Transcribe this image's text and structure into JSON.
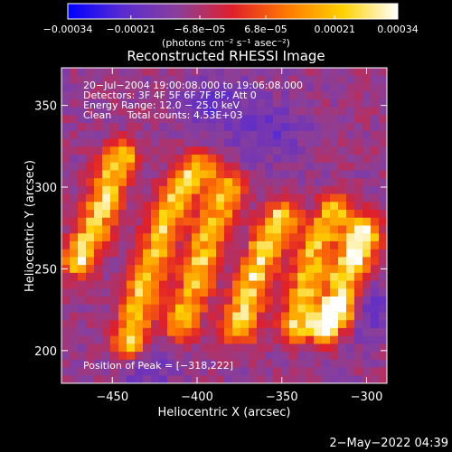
{
  "chart_data": {
    "type": "heatmap",
    "title": "Reconstructed RHESSI Image",
    "xlabel": "Heliocentric X (arcsec)",
    "ylabel": "Heliocentric Y (arcsec)",
    "xlim": [
      -480,
      -288
    ],
    "ylim": [
      180,
      373
    ],
    "x_ticks": [
      -450,
      -400,
      -350,
      -300
    ],
    "x_tick_labels": [
      "−450",
      "−400",
      "−350",
      "−300"
    ],
    "y_ticks": [
      200,
      250,
      300,
      350
    ],
    "y_tick_labels": [
      "200",
      "250",
      "300",
      "350"
    ],
    "colorbar": {
      "min": -0.00034,
      "max": 0.00034,
      "ticks": [
        -0.00034,
        -0.00021,
        -6.8e-05,
        6.8e-05,
        0.00021,
        0.00034
      ],
      "tick_labels": [
        "−0.00034",
        "−0.00021",
        "−6.8e−05",
        "6.8e−05",
        "0.00021",
        "0.00034"
      ],
      "unit": "(photons cm⁻² s⁻¹ asec⁻²)",
      "stops": [
        "#0000ff",
        "#5a2bd0",
        "#8a3f9a",
        "#e0202a",
        "#ff7a00",
        "#ffd200",
        "#ffffff"
      ]
    },
    "annotations": [
      "20−Jul−2004 19:00:08.000 to 19:06:08.000",
      "Detectors: 3F 4F 5F 6F 7F 8F, Att 0",
      "Energy Range: 12.0 − 25.0 keV",
      "Clean     Total counts: 4.53E+03"
    ],
    "peak_label": "Position of Peak = [−318,222]",
    "peak": [
      -318,
      222
    ],
    "hot_ridges": [
      {
        "name": "ridge-1",
        "points": [
          [
            -470,
            255
          ],
          [
            -460,
            275
          ],
          [
            -452,
            300
          ],
          [
            -445,
            318
          ]
        ],
        "strength": 0.8
      },
      {
        "name": "ridge-2",
        "points": [
          [
            -440,
            205
          ],
          [
            -430,
            245
          ],
          [
            -420,
            275
          ],
          [
            -410,
            300
          ],
          [
            -398,
            312
          ]
        ],
        "strength": 0.75
      },
      {
        "name": "ridge-3",
        "points": [
          [
            -410,
            215
          ],
          [
            -400,
            245
          ],
          [
            -392,
            275
          ],
          [
            -382,
            300
          ]
        ],
        "strength": 0.7
      },
      {
        "name": "ridge-4",
        "points": [
          [
            -375,
            215
          ],
          [
            -368,
            240
          ],
          [
            -360,
            262
          ],
          [
            -350,
            282
          ]
        ],
        "strength": 0.78
      },
      {
        "name": "ridge-5",
        "points": [
          [
            -342,
            215
          ],
          [
            -335,
            245
          ],
          [
            -328,
            268
          ],
          [
            -318,
            285
          ]
        ],
        "strength": 0.72
      },
      {
        "name": "ridge-6",
        "points": [
          [
            -325,
            215
          ],
          [
            -318,
            225
          ],
          [
            -310,
            250
          ],
          [
            -302,
            272
          ]
        ],
        "strength": 1.0
      }
    ],
    "cool_regions": [
      {
        "center": [
          -390,
          350
        ],
        "strength": 0.7
      },
      {
        "center": [
          -355,
          335
        ],
        "strength": 0.6
      },
      {
        "center": [
          -430,
          190
        ],
        "strength": 0.5
      },
      {
        "center": [
          -300,
          225
        ],
        "strength": 0.55
      }
    ]
  },
  "footer": {
    "timestamp": "2−May−2022 04:39"
  }
}
